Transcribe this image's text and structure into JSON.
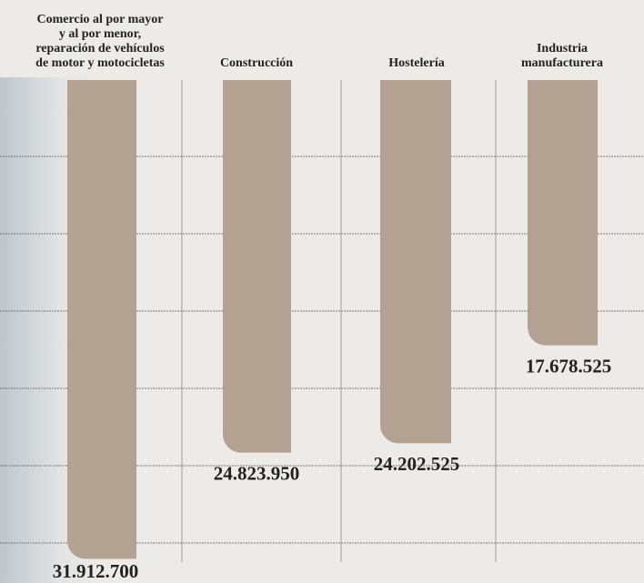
{
  "chart_data": {
    "type": "bar",
    "categories": [
      "Comercio al por mayor\ny al por menor,\nreparación de vehículos\nde motor y motocicletas",
      "Construcción",
      "Hostelería",
      "Industria\nmanufacturera"
    ],
    "values": [
      31912700,
      24823950,
      24202525,
      17678525
    ],
    "value_labels": [
      "31.912.700",
      "24.823.950",
      "24.202.525",
      "17.678.525"
    ],
    "color": "#b3a291",
    "ylim": [
      0,
      32000000
    ]
  }
}
